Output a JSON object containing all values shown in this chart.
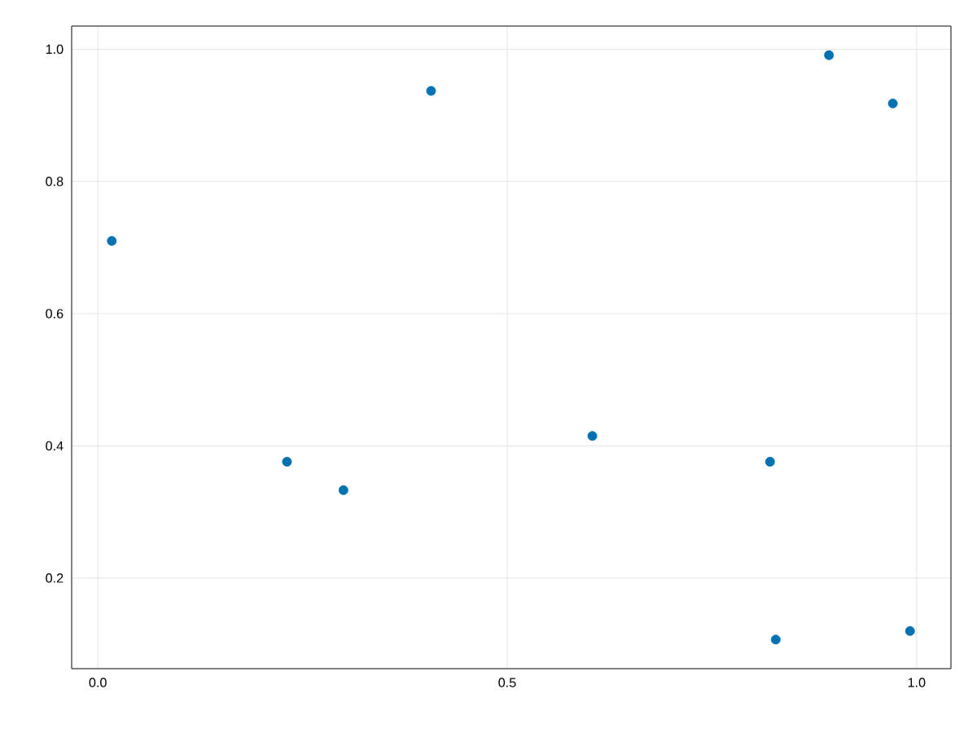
{
  "chart_data": {
    "type": "scatter",
    "x": [
      0.017,
      0.231,
      0.3,
      0.407,
      0.604,
      0.821,
      0.828,
      0.893,
      0.971,
      0.992
    ],
    "series": [
      {
        "color": "#0072b2",
        "values": [
          0.71,
          0.376,
          0.333,
          0.937,
          0.415,
          0.376,
          0.107,
          0.991,
          0.918,
          0.12
        ]
      }
    ],
    "xlim": [
      -0.032,
      1.042
    ],
    "ylim": [
      0.063,
      1.035
    ],
    "xticks": [
      {
        "value": 0,
        "label": "0.0"
      },
      0.5,
      {
        "value": 1,
        "label": "1.0"
      }
    ],
    "yticks": [
      0.2,
      0.4,
      0.6,
      0.8,
      {
        "value": 1,
        "label": "1.0"
      }
    ],
    "grid": true,
    "marker": "circle"
  }
}
